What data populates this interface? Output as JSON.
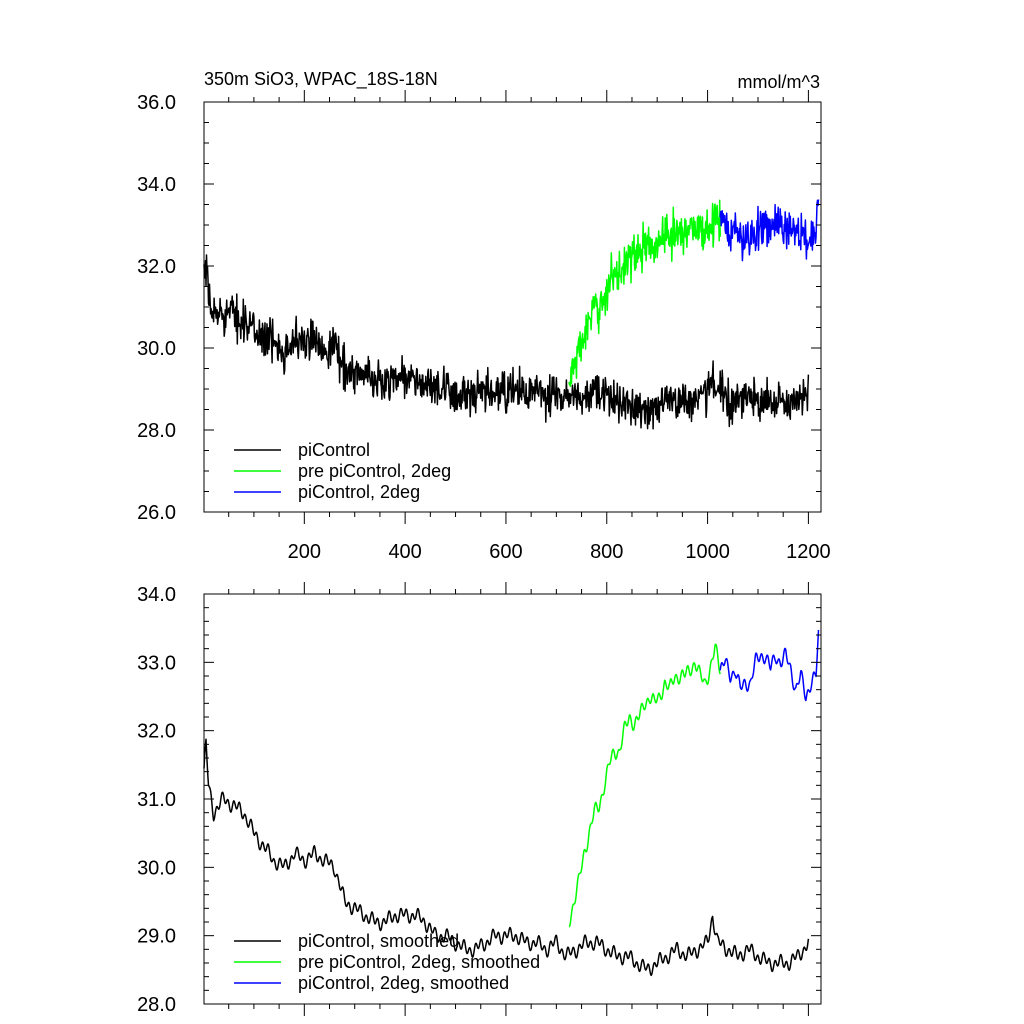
{
  "chart_data": [
    {
      "type": "line",
      "title_left": "350m SiO3, WPAC_18S-18N",
      "title_right": "mmol/m^3",
      "xlabel": "",
      "ylabel": "",
      "xlim": [
        1,
        1225
      ],
      "ylim": [
        26.0,
        36.0
      ],
      "x_ticks": [
        "200",
        "400",
        "600",
        "800",
        "1000",
        "1200"
      ],
      "y_ticks": [
        "26.0",
        "28.0",
        "30.0",
        "32.0",
        "34.0",
        "36.0"
      ],
      "legend_position": "bottom-left",
      "noise": "high",
      "series": [
        {
          "name": "piControl",
          "color": "#000000",
          "x": [
            1,
            5,
            10,
            20,
            40,
            60,
            80,
            100,
            120,
            140,
            160,
            180,
            200,
            220,
            240,
            260,
            280,
            300,
            320,
            340,
            360,
            380,
            400,
            420,
            440,
            460,
            480,
            500,
            520,
            540,
            560,
            580,
            600,
            620,
            640,
            660,
            680,
            700,
            720,
            740,
            760,
            780,
            800,
            820,
            840,
            860,
            880,
            900,
            920,
            940,
            960,
            980,
            1000,
            1010,
            1020,
            1040,
            1060,
            1080,
            1100,
            1120,
            1140,
            1160,
            1180,
            1200
          ],
          "values": [
            31.6,
            31.9,
            31.2,
            30.8,
            30.9,
            30.8,
            30.7,
            30.4,
            30.3,
            30.1,
            30.0,
            30.2,
            30.1,
            30.2,
            30.0,
            30.1,
            29.5,
            29.4,
            29.3,
            29.2,
            29.2,
            29.3,
            29.3,
            29.2,
            29.1,
            29.0,
            28.9,
            28.9,
            28.8,
            28.8,
            28.9,
            28.9,
            28.9,
            29.0,
            28.9,
            28.9,
            28.8,
            28.9,
            28.7,
            28.8,
            28.8,
            28.9,
            28.8,
            28.7,
            28.7,
            28.5,
            28.5,
            28.6,
            28.7,
            28.8,
            28.7,
            28.8,
            28.9,
            29.3,
            28.9,
            28.8,
            28.7,
            28.8,
            28.7,
            28.7,
            28.6,
            28.6,
            28.7,
            28.9
          ]
        },
        {
          "name": "pre piControl, 2deg",
          "color": "#00ff00",
          "x": [
            725,
            735,
            745,
            755,
            765,
            775,
            785,
            795,
            805,
            815,
            825,
            835,
            845,
            855,
            865,
            875,
            885,
            895,
            905,
            915,
            925,
            935,
            945,
            955,
            965,
            975,
            985,
            995,
            1005,
            1015,
            1025
          ],
          "values": [
            29.1,
            29.6,
            29.9,
            30.3,
            30.6,
            30.9,
            30.9,
            31.3,
            31.6,
            31.8,
            31.8,
            32.1,
            32.3,
            32.2,
            32.3,
            32.5,
            32.5,
            32.4,
            32.6,
            32.8,
            32.6,
            32.9,
            32.8,
            32.8,
            33.0,
            33.0,
            32.9,
            32.8,
            33.0,
            33.2,
            33.0
          ]
        },
        {
          "name": "piControl, 2deg",
          "color": "#0000ff",
          "x": [
            1025,
            1035,
            1045,
            1055,
            1065,
            1075,
            1085,
            1095,
            1105,
            1115,
            1125,
            1135,
            1145,
            1155,
            1165,
            1175,
            1185,
            1195,
            1205,
            1215,
            1220
          ],
          "values": [
            33.0,
            33.0,
            32.8,
            32.9,
            32.6,
            32.7,
            32.7,
            32.9,
            33.0,
            33.0,
            32.9,
            33.0,
            32.9,
            33.0,
            32.9,
            32.8,
            32.9,
            32.6,
            32.7,
            32.8,
            33.4
          ]
        }
      ]
    },
    {
      "type": "line",
      "xlabel": "",
      "ylabel": "",
      "xlim": [
        1,
        1225
      ],
      "ylim": [
        28.0,
        34.0
      ],
      "y_ticks": [
        "28.0",
        "29.0",
        "30.0",
        "31.0",
        "32.0",
        "33.0",
        "34.0"
      ],
      "legend_position": "bottom-left",
      "noise": "low",
      "series": [
        {
          "name": "piControl, smoothed",
          "color": "#000000",
          "x": [
            1,
            5,
            10,
            20,
            40,
            60,
            80,
            100,
            120,
            140,
            160,
            180,
            200,
            220,
            240,
            260,
            280,
            300,
            320,
            340,
            360,
            380,
            400,
            420,
            440,
            460,
            480,
            500,
            520,
            540,
            560,
            580,
            600,
            620,
            640,
            660,
            680,
            700,
            720,
            740,
            760,
            780,
            800,
            820,
            840,
            860,
            880,
            900,
            920,
            940,
            960,
            980,
            1000,
            1010,
            1020,
            1040,
            1060,
            1080,
            1100,
            1120,
            1140,
            1160,
            1180,
            1200
          ],
          "values": [
            31.4,
            31.8,
            31.2,
            30.8,
            31.0,
            30.9,
            30.8,
            30.5,
            30.3,
            30.1,
            30.0,
            30.2,
            30.1,
            30.2,
            30.1,
            30.0,
            29.5,
            29.4,
            29.3,
            29.2,
            29.2,
            29.3,
            29.3,
            29.3,
            29.2,
            29.0,
            29.0,
            28.9,
            28.8,
            28.8,
            28.9,
            29.0,
            29.0,
            29.0,
            28.9,
            28.9,
            28.8,
            28.9,
            28.7,
            28.8,
            28.9,
            28.9,
            28.8,
            28.7,
            28.7,
            28.6,
            28.5,
            28.6,
            28.7,
            28.8,
            28.7,
            28.8,
            28.9,
            29.3,
            28.9,
            28.8,
            28.7,
            28.8,
            28.7,
            28.6,
            28.6,
            28.6,
            28.7,
            28.9
          ]
        },
        {
          "name": "pre piControl, 2deg, smoothed",
          "color": "#00ff00",
          "x": [
            725,
            735,
            745,
            755,
            765,
            775,
            785,
            795,
            805,
            815,
            825,
            835,
            845,
            855,
            865,
            875,
            885,
            895,
            905,
            915,
            925,
            935,
            945,
            955,
            965,
            975,
            985,
            995,
            1005,
            1015,
            1025
          ],
          "values": [
            29.2,
            29.5,
            29.8,
            30.2,
            30.5,
            30.8,
            30.9,
            31.2,
            31.5,
            31.7,
            31.7,
            32.0,
            32.2,
            32.1,
            32.2,
            32.4,
            32.5,
            32.4,
            32.5,
            32.7,
            32.6,
            32.8,
            32.8,
            32.8,
            32.9,
            33.0,
            32.8,
            32.7,
            32.9,
            33.2,
            32.9
          ]
        },
        {
          "name": "piControl, 2deg, smoothed",
          "color": "#0000ff",
          "x": [
            1025,
            1035,
            1045,
            1055,
            1065,
            1075,
            1085,
            1095,
            1105,
            1115,
            1125,
            1135,
            1145,
            1155,
            1165,
            1175,
            1185,
            1195,
            1205,
            1215,
            1220
          ],
          "values": [
            32.9,
            33.0,
            32.8,
            32.9,
            32.6,
            32.7,
            32.7,
            33.0,
            33.1,
            33.1,
            32.9,
            33.1,
            33.0,
            33.1,
            32.9,
            32.6,
            32.8,
            32.5,
            32.7,
            32.8,
            33.4
          ]
        }
      ]
    }
  ]
}
